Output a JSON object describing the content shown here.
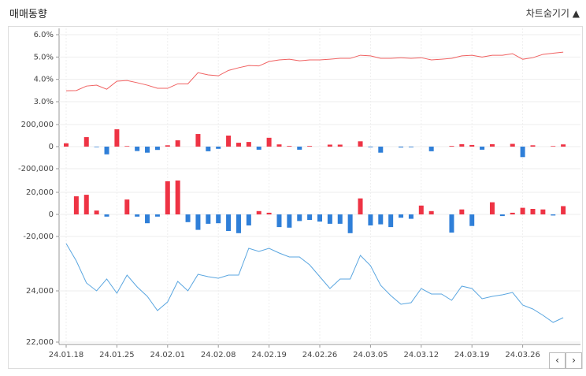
{
  "header": {
    "title": "매매동향",
    "toggle": "차트숨기기"
  },
  "chart_data": [
    {
      "type": "line",
      "color": "#f06060",
      "ylim": [
        2.5,
        6.0
      ],
      "yticks": [
        {
          "value": 3,
          "label": "3.0%"
        },
        {
          "value": 4,
          "label": "4.0%"
        },
        {
          "value": 5,
          "label": "5.0%"
        },
        {
          "value": 6,
          "label": "6.0%"
        }
      ],
      "values": [
        3.49,
        3.5,
        3.7,
        3.74,
        3.56,
        3.92,
        3.95,
        3.85,
        3.74,
        3.6,
        3.6,
        3.8,
        3.8,
        4.3,
        4.2,
        4.16,
        4.4,
        4.52,
        4.62,
        4.6,
        4.8,
        4.87,
        4.9,
        4.83,
        4.87,
        4.87,
        4.9,
        4.94,
        4.94,
        5.08,
        5.05,
        4.94,
        4.94,
        4.97,
        4.94,
        4.97,
        4.87,
        4.9,
        4.94,
        5.05,
        5.08,
        5.0,
        5.08,
        5.08,
        5.15,
        4.9,
        4.97,
        5.12,
        5.17,
        5.22
      ]
    },
    {
      "type": "bar",
      "positive_color": "#ee3344",
      "negative_color": "#2f7fd8",
      "ylim": [
        -250000,
        250000
      ],
      "yticks": [
        {
          "value": -200000,
          "label": "-200,000"
        },
        0,
        {
          "value": 200000,
          "label": "200,000"
        }
      ],
      "values": [
        30000,
        0,
        86000,
        -5000,
        -70000,
        157000,
        5000,
        -40000,
        -55000,
        -30000,
        12000,
        57000,
        0,
        114000,
        -42000,
        -20000,
        100000,
        35000,
        42000,
        -28000,
        80000,
        20000,
        6000,
        -28000,
        6000,
        0,
        18000,
        18000,
        0,
        48000,
        -6000,
        -55000,
        0,
        -8000,
        -6000,
        0,
        -42000,
        0,
        6000,
        22000,
        15000,
        -28000,
        22000,
        0,
        25000,
        -95000,
        12000,
        0,
        5000,
        20000
      ]
    },
    {
      "type": "bar",
      "positive_color": "#ee3344",
      "negative_color": "#2f7fd8",
      "ylim": [
        -32000,
        35000
      ],
      "yticks": [
        {
          "value": -20000,
          "label": "-20,000"
        },
        0,
        {
          "value": 20000,
          "label": "20,000"
        }
      ],
      "values": [
        0,
        16400,
        17800,
        3500,
        -2000,
        0,
        13500,
        -2000,
        -8000,
        -2000,
        30000,
        30700,
        -7000,
        -14000,
        -8500,
        -8000,
        -15000,
        -17000,
        -10000,
        3000,
        1500,
        -11500,
        -12000,
        -6000,
        -5000,
        -6500,
        -8500,
        -8500,
        -17000,
        14500,
        -10000,
        -9000,
        -11500,
        -3000,
        -4000,
        8000,
        3000,
        0,
        -16500,
        4500,
        -10500,
        0,
        11000,
        -1500,
        1500,
        6000,
        5000,
        4500,
        -1000,
        7500
      ]
    },
    {
      "type": "line",
      "color": "#5aa6e0",
      "ylim": [
        22000,
        26000
      ],
      "yticks": [
        {
          "value": 22000,
          "label": "22,000"
        },
        {
          "value": 24000,
          "label": "24,000"
        }
      ],
      "categories": [
        "24.01.18",
        null,
        null,
        null,
        null,
        "24.01.25",
        null,
        null,
        null,
        null,
        "24.02.01",
        null,
        null,
        null,
        null,
        "24.02.08",
        null,
        null,
        null,
        null,
        "24.02.19",
        null,
        null,
        null,
        null,
        "24.02.26",
        null,
        null,
        null,
        null,
        "24.03.05",
        null,
        null,
        null,
        null,
        "24.03.12",
        null,
        null,
        null,
        null,
        "24.03.19",
        null,
        null,
        null,
        null,
        "24.03.26",
        null,
        null,
        null,
        null
      ],
      "values": [
        25846,
        25169,
        24308,
        24000,
        24462,
        23908,
        24615,
        24154,
        23785,
        23231,
        23569,
        24369,
        24000,
        24646,
        24554,
        24492,
        24615,
        24615,
        25662,
        25538,
        25662,
        25477,
        25323,
        25323,
        25015,
        24554,
        24092,
        24462,
        24462,
        25385,
        24985,
        24215,
        23815,
        23477,
        23538,
        24092,
        23877,
        23877,
        23631,
        24185,
        24092,
        23692,
        23785,
        23846,
        23938,
        23446,
        23292,
        23046,
        22769,
        22954
      ]
    }
  ]
}
